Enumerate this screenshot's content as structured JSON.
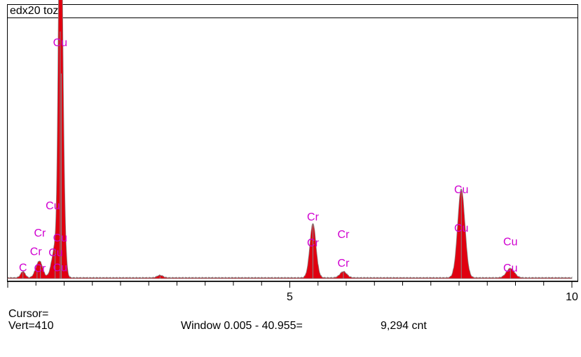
{
  "window": {
    "title": "edx20 toz"
  },
  "status": {
    "cursor_label": "Cursor=",
    "vert_readout": "Vert=410",
    "window_readout": "Window 0.005 - 40.955=",
    "count_readout": "9,294 cnt"
  },
  "colors": {
    "spectrum_fill": "#e00010",
    "spectrum_outline": "#888888",
    "peak_label": "#d000d0",
    "line_marker": "#ff00ff",
    "axis": "#000000"
  },
  "chart_data": {
    "type": "area",
    "title": "edx20 toz",
    "xlabel": "",
    "ylabel": "",
    "xlim": [
      0,
      10
    ],
    "ylim": [
      0,
      100
    ],
    "x_ticks": [
      {
        "value": 5,
        "label": "5"
      },
      {
        "value": 10,
        "label": "10"
      }
    ],
    "peaks": [
      {
        "energy": 0.27,
        "height": 2.5,
        "width": 0.04
      },
      {
        "energy": 0.52,
        "height": 3.0,
        "width": 0.05
      },
      {
        "energy": 0.58,
        "height": 5.0,
        "width": 0.05
      },
      {
        "energy": 0.84,
        "height": 12.0,
        "width": 0.06
      },
      {
        "energy": 0.93,
        "height": 100.0,
        "width": 0.03
      },
      {
        "energy": 0.95,
        "height": 83.0,
        "width": 0.045
      },
      {
        "energy": 2.7,
        "height": 1.0,
        "width": 0.05
      },
      {
        "energy": 5.41,
        "height": 22.0,
        "width": 0.055
      },
      {
        "energy": 5.95,
        "height": 2.5,
        "width": 0.06
      },
      {
        "energy": 8.04,
        "height": 36.0,
        "width": 0.065
      },
      {
        "energy": 8.91,
        "height": 3.8,
        "width": 0.07
      }
    ],
    "labels": [
      {
        "text": "Cu",
        "energy": 0.93,
        "height": 94.0
      },
      {
        "text": "Cu",
        "energy": 0.8,
        "height": 28.0
      },
      {
        "text": "Cr",
        "energy": 0.57,
        "height": 17.0
      },
      {
        "text": "Cu",
        "energy": 0.93,
        "height": 15.0
      },
      {
        "text": "Cr",
        "energy": 0.5,
        "height": 9.5
      },
      {
        "text": "Cu",
        "energy": 0.85,
        "height": 9.0
      },
      {
        "text": "C",
        "energy": 0.27,
        "height": 3.0
      },
      {
        "text": "Cr",
        "energy": 0.57,
        "height": 2.7
      },
      {
        "text": "Cu",
        "energy": 0.93,
        "height": 3.0
      },
      {
        "text": "Cr",
        "energy": 5.41,
        "height": 23.5
      },
      {
        "text": "Cr",
        "energy": 5.41,
        "height": 13.0
      },
      {
        "text": "Cr",
        "energy": 5.95,
        "height": 16.5
      },
      {
        "text": "Cr",
        "energy": 5.95,
        "height": 4.8
      },
      {
        "text": "Cu",
        "energy": 8.04,
        "height": 34.5
      },
      {
        "text": "Cu",
        "energy": 8.04,
        "height": 19.0
      },
      {
        "text": "Cu",
        "energy": 8.91,
        "height": 13.5
      },
      {
        "text": "Cu",
        "energy": 8.91,
        "height": 2.8
      }
    ]
  }
}
